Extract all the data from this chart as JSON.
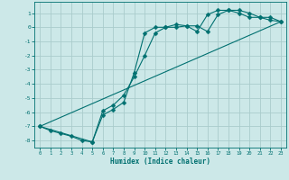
{
  "xlabel": "Humidex (Indice chaleur)",
  "bg_color": "#cce8e8",
  "grid_color": "#aacccc",
  "line_color": "#007070",
  "xlim": [
    -0.5,
    23.5
  ],
  "ylim": [
    -8.5,
    1.8
  ],
  "yticks": [
    1,
    0,
    -1,
    -2,
    -3,
    -4,
    -5,
    -6,
    -7,
    -8
  ],
  "xticks": [
    0,
    1,
    2,
    3,
    4,
    5,
    6,
    7,
    8,
    9,
    10,
    11,
    12,
    13,
    14,
    15,
    16,
    17,
    18,
    19,
    20,
    21,
    22,
    23
  ],
  "line1_x": [
    0,
    1,
    2,
    3,
    4,
    5,
    6,
    7,
    8,
    9,
    10,
    11,
    12,
    13,
    14,
    15,
    16,
    17,
    18,
    19,
    20,
    21,
    22,
    23
  ],
  "line1_y": [
    -7.0,
    -7.3,
    -7.5,
    -7.7,
    -8.0,
    -8.1,
    -6.2,
    -5.8,
    -5.3,
    -3.2,
    -0.4,
    0.0,
    0.0,
    0.2,
    0.1,
    -0.3,
    0.9,
    1.2,
    1.2,
    1.0,
    0.7,
    0.7,
    0.5,
    0.4
  ],
  "line2_x": [
    0,
    5,
    6,
    7,
    8,
    9,
    10,
    11,
    12,
    13,
    14,
    15,
    16,
    17,
    18,
    19,
    20,
    21,
    22,
    23
  ],
  "line2_y": [
    -7.0,
    -8.1,
    -5.9,
    -5.5,
    -4.8,
    -3.5,
    -2.0,
    -0.4,
    0.0,
    0.0,
    0.1,
    0.1,
    -0.3,
    0.9,
    1.2,
    1.2,
    1.0,
    0.7,
    0.7,
    0.4
  ],
  "line3_x": [
    0,
    23
  ],
  "line3_y": [
    -7.0,
    0.4
  ]
}
